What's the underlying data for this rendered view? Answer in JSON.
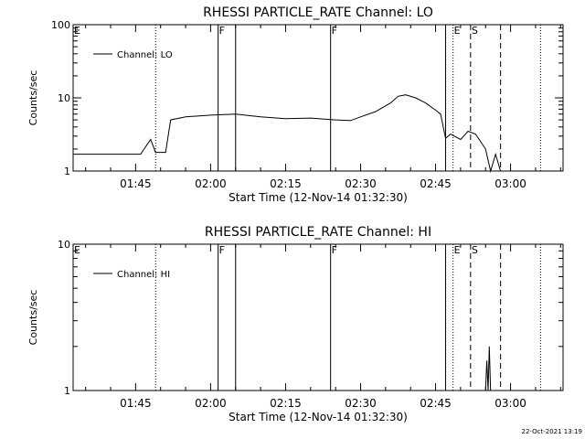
{
  "chart_data": [
    {
      "type": "line",
      "title": "RHESSI PARTICLE_RATE Channel: LO",
      "xlabel": "Start Time (12-Nov-14 01:32:30)",
      "ylabel": "Counts/sec",
      "y_scale": "log",
      "ylim": [
        1,
        100
      ],
      "xlim": [
        "01:32:30",
        "03:10:30"
      ],
      "y_tick_labels": [
        "1",
        "10",
        "100"
      ],
      "x_tick_labels": [
        "01:45",
        "02:00",
        "02:15",
        "02:30",
        "02:45",
        "03:00"
      ],
      "legend": "top-left",
      "series": [
        {
          "name": "Channel: LO",
          "x": [
            "01:32:30",
            "01:37:00",
            "01:42:00",
            "01:46:00",
            "01:48:00",
            "01:49:00",
            "01:50:00",
            "01:51:00",
            "01:52:00",
            "01:55:00",
            "02:00:00",
            "02:05:00",
            "02:10:00",
            "02:15:00",
            "02:20:00",
            "02:25:00",
            "02:28:00",
            "02:30:00",
            "02:33:00",
            "02:36:00",
            "02:37:30",
            "02:39:00",
            "02:41:00",
            "02:43:00",
            "02:45:00",
            "02:46:00",
            "02:47:00",
            "02:48:00",
            "02:50:00",
            "02:51:30",
            "02:53:00",
            "02:55:00",
            "02:56:00",
            "02:57:00",
            "02:58:00",
            "03:00:00",
            "03:03:00"
          ],
          "y": [
            1.7,
            1.7,
            1.7,
            1.7,
            2.7,
            1.8,
            1.8,
            1.8,
            5,
            5.5,
            5.8,
            6,
            5.5,
            5.2,
            5.3,
            5,
            4.9,
            5.5,
            6.5,
            8.5,
            10.5,
            11,
            10,
            8.5,
            6.8,
            6,
            2.8,
            3.2,
            2.7,
            3.5,
            3.2,
            2,
            1,
            1.7,
            1,
            1,
            1
          ]
        }
      ],
      "annotations": [
        {
          "label": "E",
          "x": "01:32:30",
          "style": "none"
        },
        {
          "label": "",
          "x": "01:49:00",
          "style": "dotted"
        },
        {
          "label": "F",
          "x": "02:01:30",
          "style": "solid"
        },
        {
          "label": "",
          "x": "02:05:00",
          "style": "solid"
        },
        {
          "label": "F",
          "x": "02:24:00",
          "style": "solid"
        },
        {
          "label": "",
          "x": "02:47:00",
          "style": "solid"
        },
        {
          "label": "E",
          "x": "02:48:30",
          "style": "dotted"
        },
        {
          "label": "S",
          "x": "02:52:00",
          "style": "dashed"
        },
        {
          "label": "",
          "x": "02:58:00",
          "style": "dashed"
        },
        {
          "label": "",
          "x": "03:06:00",
          "style": "dotted"
        }
      ]
    },
    {
      "type": "line",
      "title": "RHESSI PARTICLE_RATE Channel: HI",
      "xlabel": "Start Time (12-Nov-14 01:32:30)",
      "ylabel": "Counts/sec",
      "y_scale": "log",
      "ylim": [
        1,
        10
      ],
      "xlim": [
        "01:32:30",
        "03:10:30"
      ],
      "y_tick_labels": [
        "1",
        "10"
      ],
      "x_tick_labels": [
        "01:45",
        "02:00",
        "02:15",
        "02:30",
        "02:45",
        "03:00"
      ],
      "legend": "top-left",
      "series": [
        {
          "name": "Channel: HI",
          "x": [
            "02:55:00",
            "02:55:15",
            "02:55:30",
            "02:55:45",
            "02:56:00"
          ],
          "y": [
            1,
            1.6,
            1,
            2,
            1
          ]
        }
      ],
      "annotations": [
        {
          "label": "E",
          "x": "01:32:30",
          "style": "none"
        },
        {
          "label": "",
          "x": "01:49:00",
          "style": "dotted"
        },
        {
          "label": "F",
          "x": "02:01:30",
          "style": "solid"
        },
        {
          "label": "",
          "x": "02:05:00",
          "style": "solid"
        },
        {
          "label": "F",
          "x": "02:24:00",
          "style": "solid"
        },
        {
          "label": "",
          "x": "02:47:00",
          "style": "solid"
        },
        {
          "label": "E",
          "x": "02:48:30",
          "style": "dotted"
        },
        {
          "label": "S",
          "x": "02:52:00",
          "style": "dashed"
        },
        {
          "label": "",
          "x": "02:58:00",
          "style": "dashed"
        },
        {
          "label": "",
          "x": "03:06:00",
          "style": "dotted"
        }
      ]
    }
  ],
  "footer": {
    "timestamp": "22-Oct-2021 13:19"
  }
}
